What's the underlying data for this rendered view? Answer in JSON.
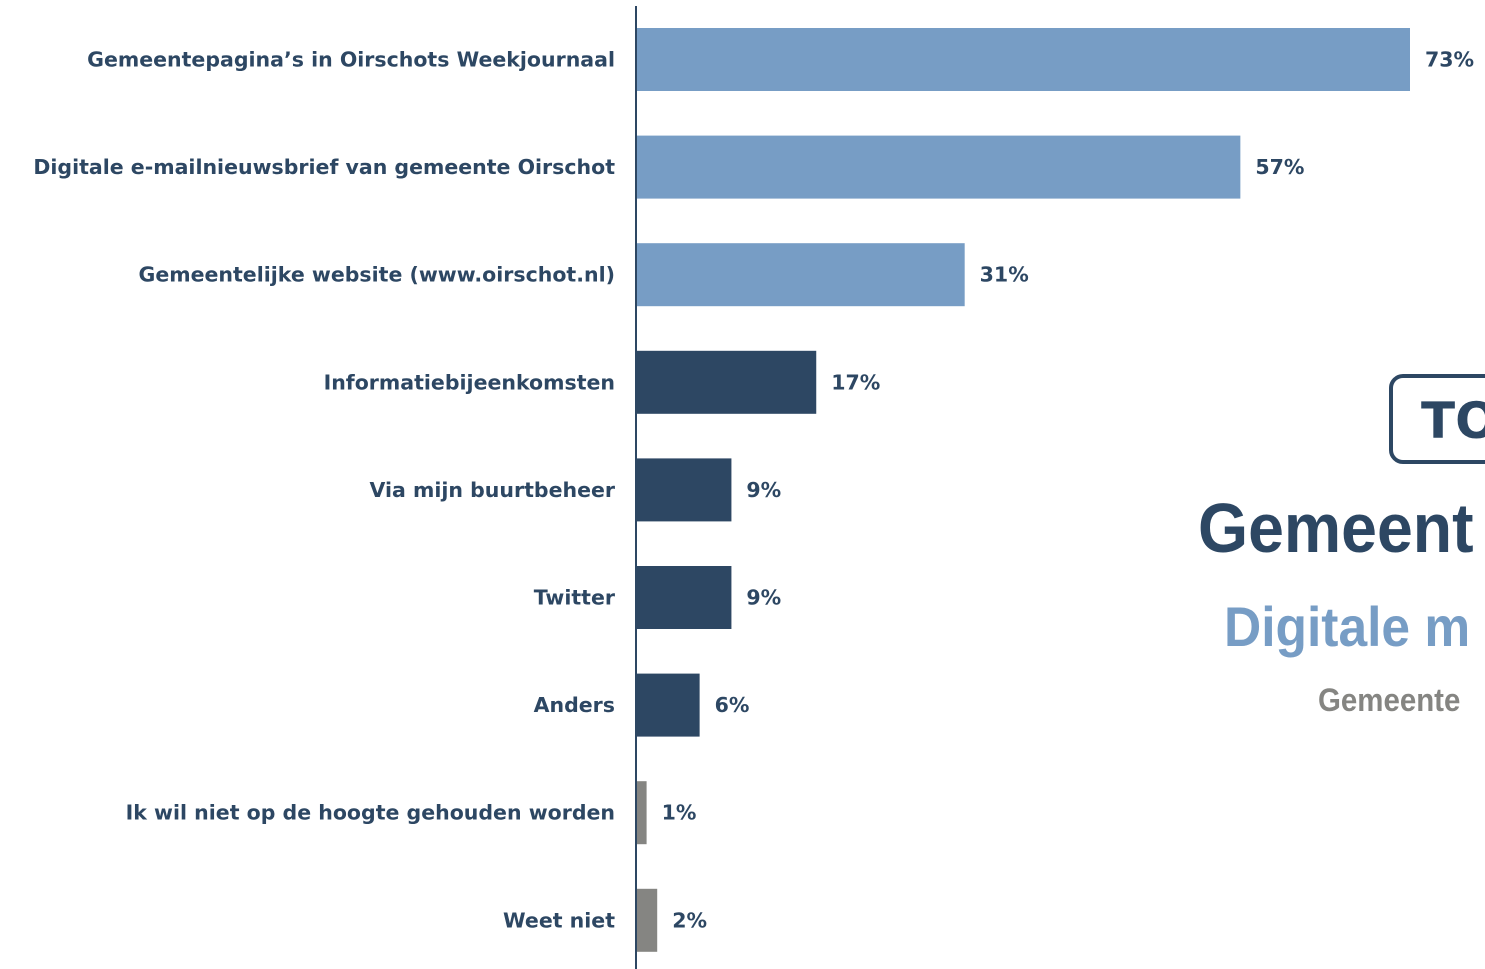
{
  "chart_data": {
    "type": "bar",
    "orientation": "horizontal",
    "categories": [
      "Gemeentepagina’s in Oirschots Weekjournaal",
      "Digitale e-mailnieuwsbrief van gemeente Oirschot",
      "Gemeentelijke website (www.oirschot.nl)",
      "Informatiebijeenkomsten",
      "Via mijn buurtbeheer",
      "Twitter",
      "Anders",
      "Ik wil niet op de hoogte gehouden worden",
      "Weet niet"
    ],
    "values": [
      73,
      57,
      31,
      17,
      9,
      9,
      6,
      1,
      2
    ],
    "value_labels": [
      "73%",
      "57%",
      "31%",
      "17%",
      "9%",
      "9%",
      "6%",
      "1%",
      "2%"
    ],
    "bar_colors": [
      "#779dc5",
      "#779dc5",
      "#779dc5",
      "#2d4763",
      "#2d4763",
      "#2d4763",
      "#2d4763",
      "#858582",
      "#858582"
    ],
    "xlim": [
      0,
      100
    ],
    "grid": false,
    "axis_color": "#2d4763",
    "label_color": "#2d4763"
  },
  "overlay": {
    "badge": "TO",
    "title": "Gemeent",
    "subtitle": "Digitale m",
    "caption": "Gemeente",
    "colors": {
      "title": "#2d4763",
      "subtitle": "#779dc5",
      "caption": "#858582"
    }
  }
}
